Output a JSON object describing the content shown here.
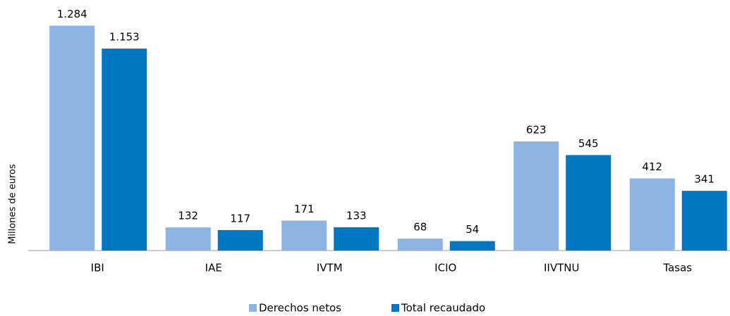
{
  "chart_data": {
    "type": "bar",
    "y_label": "Millones de euros",
    "categories": [
      "IBI",
      "IAE",
      "IVTM",
      "ICIO",
      "IIVTNU",
      "Tasas"
    ],
    "series": [
      {
        "name": "Derechos netos",
        "color": "#8db4e2",
        "values": [
          1284,
          132,
          171,
          68,
          623,
          412
        ],
        "value_labels": [
          "1.284",
          "132",
          "171",
          "68",
          "623",
          "412"
        ]
      },
      {
        "name": "Total recaudado",
        "color": "#0077c0",
        "values": [
          1153,
          117,
          133,
          54,
          545,
          341
        ],
        "value_labels": [
          "1.153",
          "117",
          "133",
          "54",
          "545",
          "341"
        ]
      }
    ],
    "ylim": [
      0,
      1350
    ],
    "legend": "bottom"
  }
}
